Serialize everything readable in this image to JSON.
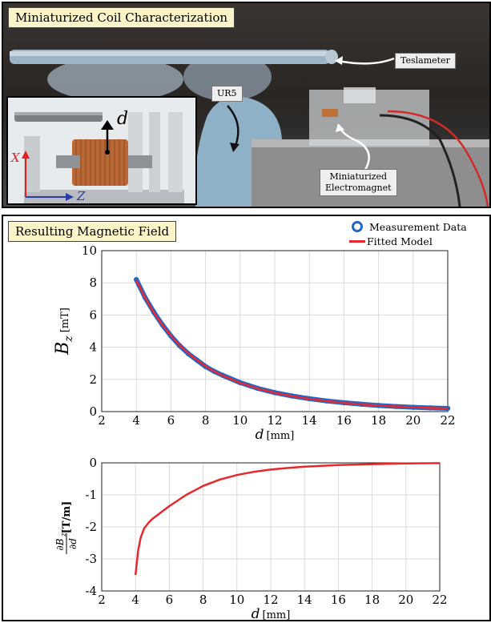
{
  "photo": {
    "title": "Miniaturized Coil Characterization",
    "labels": {
      "teslameter": "Teslameter",
      "ur5": "UR5",
      "electromagnet_line1": "Miniaturized",
      "electromagnet_line2": "Electromagnet"
    },
    "inset": {
      "distance_label": "d",
      "x_axis": "X",
      "z_axis": "Z"
    }
  },
  "plot_panel": {
    "title": "Resulting Magnetic Field",
    "legend": {
      "measurement": "Measurement Data",
      "fitted": "Fitted Model"
    }
  },
  "colors": {
    "measurement": "#2166c9",
    "fitted": "#e8282c",
    "axis_red": "#e22020",
    "axis_blue": "#2a3ca8"
  },
  "chart_data": [
    {
      "type": "line",
      "xlabel": "d [mm]",
      "ylabel": "B_z [mT]",
      "xlim": [
        2,
        22
      ],
      "ylim": [
        0,
        10
      ],
      "xticks": [
        "2",
        "4",
        "6",
        "8",
        "10",
        "12",
        "14",
        "16",
        "18",
        "20",
        "22"
      ],
      "yticks": [
        "0",
        "2",
        "4",
        "6",
        "8",
        "10"
      ],
      "grid": true,
      "series": [
        {
          "name": "Measurement Data",
          "x": [
            4,
            4.5,
            5,
            5.5,
            6,
            6.5,
            7,
            7.5,
            8,
            8.5,
            9,
            10,
            11,
            12,
            13,
            14,
            15,
            16,
            17,
            18,
            19,
            20,
            21,
            22
          ],
          "y": [
            8.2,
            7.1,
            6.2,
            5.4,
            4.7,
            4.1,
            3.6,
            3.2,
            2.8,
            2.5,
            2.25,
            1.8,
            1.45,
            1.18,
            0.97,
            0.8,
            0.66,
            0.55,
            0.46,
            0.38,
            0.32,
            0.27,
            0.23,
            0.2
          ]
        },
        {
          "name": "Fitted Model",
          "x": [
            4,
            4.5,
            5,
            5.5,
            6,
            6.5,
            7,
            7.5,
            8,
            8.5,
            9,
            10,
            11,
            12,
            13,
            14,
            15,
            16,
            17,
            18,
            19,
            20,
            21,
            22
          ],
          "y": [
            8.15,
            7.08,
            6.18,
            5.4,
            4.72,
            4.13,
            3.63,
            3.2,
            2.82,
            2.5,
            2.23,
            1.78,
            1.44,
            1.17,
            0.96,
            0.79,
            0.65,
            0.54,
            0.45,
            0.38,
            0.32,
            0.27,
            0.23,
            0.19
          ]
        }
      ]
    },
    {
      "type": "line",
      "xlabel": "d [mm]",
      "ylabel": "∂B_z/∂d [T/m]",
      "xlim": [
        2,
        22
      ],
      "ylim": [
        -4,
        0
      ],
      "xticks": [
        "2",
        "4",
        "6",
        "8",
        "10",
        "12",
        "14",
        "16",
        "18",
        "20",
        "22"
      ],
      "yticks": [
        "0",
        "-1",
        "-2",
        "-3",
        "-4"
      ],
      "grid": true,
      "series": [
        {
          "name": "Fitted Model",
          "x": [
            4,
            4.15,
            4.3,
            4.5,
            4.8,
            5,
            5.5,
            6,
            7,
            8,
            9,
            10,
            11,
            12,
            13,
            14,
            16,
            18,
            20,
            22
          ],
          "y": [
            -3.5,
            -2.75,
            -2.35,
            -2.05,
            -1.85,
            -1.75,
            -1.55,
            -1.35,
            -1.0,
            -0.72,
            -0.52,
            -0.38,
            -0.28,
            -0.21,
            -0.16,
            -0.12,
            -0.07,
            -0.04,
            -0.02,
            -0.01
          ]
        }
      ]
    }
  ]
}
